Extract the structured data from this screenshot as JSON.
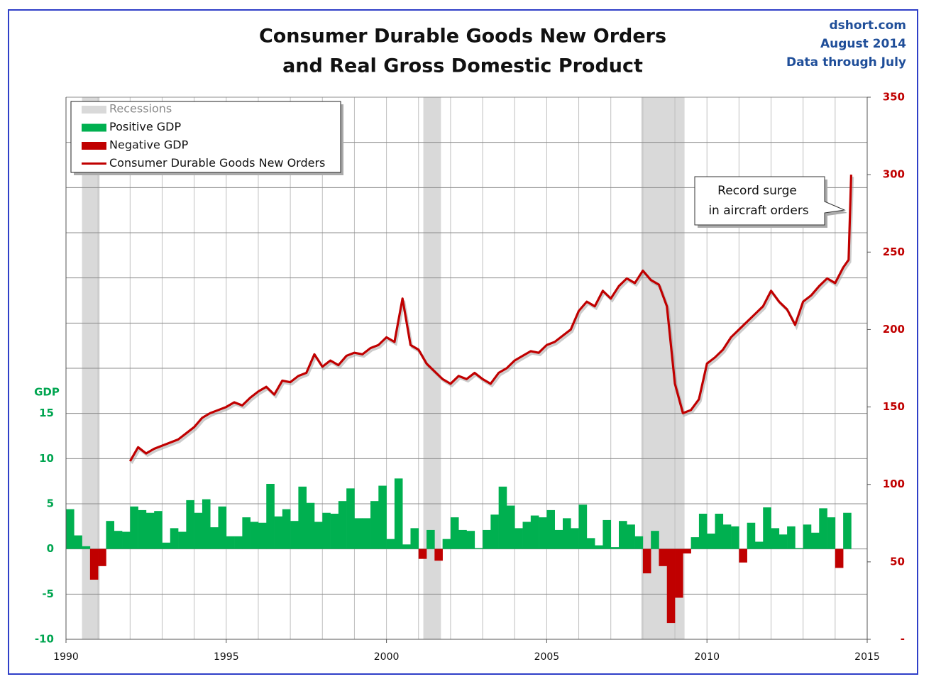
{
  "chart_data": {
    "type": "gdp-orders",
    "title": [
      "Consumer Durable Goods New Orders",
      "and Real Gross Domestic Product"
    ],
    "source": [
      "dshort.com",
      "August 2014",
      "Data through July"
    ],
    "y_label": "GDP",
    "annotation": [
      "Record surge",
      "in aircraft orders"
    ],
    "xlim": [
      1990,
      2015
    ],
    "xticks": [
      1990,
      1995,
      2000,
      2005,
      2010,
      2015
    ],
    "xgrid": [
      1990,
      1991,
      1992,
      1993,
      1994,
      1995,
      1996,
      1997,
      1998,
      1999,
      2000,
      2001,
      2002,
      2003,
      2004,
      2005,
      2006,
      2007,
      2008,
      2009,
      2010,
      2011,
      2012,
      2013,
      2014,
      2015
    ],
    "ylim": [
      -10,
      50
    ],
    "yticks": [
      -10,
      -5,
      0,
      5,
      10,
      15
    ],
    "ygrid": [
      -10,
      -5,
      0,
      5,
      10,
      15,
      20,
      25,
      30,
      35,
      40,
      45,
      50
    ],
    "y2lim": [
      0,
      350
    ],
    "y2ticks": [
      {
        "value": 0,
        "label": "-"
      },
      50,
      100,
      150,
      200,
      250,
      300,
      350
    ],
    "recessions": {
      "name": "Recessions",
      "color": "#d9d9d9",
      "spans": [
        [
          1990.5,
          1991.05
        ],
        [
          2001.15,
          2001.7
        ],
        [
          2007.95,
          2009.3
        ]
      ]
    },
    "gdp": {
      "positive": {
        "name": "Positive GDP",
        "color": "#00b050"
      },
      "negative": {
        "name": "Negative GDP",
        "color": "#c00000"
      },
      "x": [
        1990,
        1990.25,
        1990.5,
        1990.75,
        1991,
        1991.25,
        1991.5,
        1991.75,
        1992,
        1992.25,
        1992.5,
        1992.75,
        1993,
        1993.25,
        1993.5,
        1993.75,
        1994,
        1994.25,
        1994.5,
        1994.75,
        1995,
        1995.25,
        1995.5,
        1995.75,
        1996,
        1996.25,
        1996.5,
        1996.75,
        1997,
        1997.25,
        1997.5,
        1997.75,
        1998,
        1998.25,
        1998.5,
        1998.75,
        1999,
        1999.25,
        1999.5,
        1999.75,
        2000,
        2000.25,
        2000.5,
        2000.75,
        2001,
        2001.25,
        2001.5,
        2001.75,
        2002,
        2002.25,
        2002.5,
        2002.75,
        2003,
        2003.25,
        2003.5,
        2003.75,
        2004,
        2004.25,
        2004.5,
        2004.75,
        2005,
        2005.25,
        2005.5,
        2005.75,
        2006,
        2006.25,
        2006.5,
        2006.75,
        2007,
        2007.25,
        2007.5,
        2007.75,
        2008,
        2008.25,
        2008.5,
        2008.75,
        2009,
        2009.25,
        2009.5,
        2009.75,
        2010,
        2010.25,
        2010.5,
        2010.75,
        2011,
        2011.25,
        2011.5,
        2011.75,
        2012,
        2012.25,
        2012.5,
        2012.75,
        2013,
        2013.25,
        2013.5,
        2013.75,
        2014,
        2014.25
      ],
      "values": [
        4.4,
        1.5,
        0.3,
        -3.4,
        -1.9,
        3.1,
        2.0,
        1.9,
        4.7,
        4.3,
        4.0,
        4.2,
        0.7,
        2.3,
        1.9,
        5.4,
        4.0,
        5.5,
        2.4,
        4.7,
        1.4,
        1.4,
        3.5,
        3.0,
        2.9,
        7.2,
        3.6,
        4.4,
        3.1,
        6.9,
        5.1,
        3.0,
        4.0,
        3.9,
        5.3,
        6.7,
        3.4,
        3.4,
        5.3,
        7.0,
        1.1,
        7.8,
        0.5,
        2.3,
        -1.1,
        2.1,
        -1.3,
        1.1,
        3.5,
        2.1,
        2.0,
        0.1,
        2.1,
        3.8,
        6.9,
        4.8,
        2.3,
        3.0,
        3.7,
        3.5,
        4.3,
        2.1,
        3.4,
        2.3,
        4.9,
        1.2,
        0.4,
        3.2,
        0.2,
        3.1,
        2.7,
        1.4,
        -2.7,
        2.0,
        -1.9,
        -8.2,
        -5.4,
        -0.5,
        1.3,
        3.9,
        1.7,
        3.9,
        2.7,
        2.5,
        -1.5,
        2.9,
        0.8,
        4.6,
        2.3,
        1.6,
        2.5,
        0.1,
        2.7,
        1.8,
        4.5,
        3.5,
        -2.1,
        4.0
      ]
    },
    "series": [
      {
        "name": "Consumer Durable Goods New Orders",
        "color": "#c00000",
        "axis": "y2",
        "x": [
          1992,
          1992.25,
          1992.5,
          1992.75,
          1993,
          1993.25,
          1993.5,
          1993.75,
          1994,
          1994.25,
          1994.5,
          1994.75,
          1995,
          1995.25,
          1995.5,
          1995.75,
          1996,
          1996.25,
          1996.5,
          1996.75,
          1997,
          1997.25,
          1997.5,
          1997.75,
          1998,
          1998.25,
          1998.5,
          1998.75,
          1999,
          1999.25,
          1999.5,
          1999.75,
          2000,
          2000.25,
          2000.5,
          2000.75,
          2001,
          2001.25,
          2001.5,
          2001.75,
          2002,
          2002.25,
          2002.5,
          2002.75,
          2003,
          2003.25,
          2003.5,
          2003.75,
          2004,
          2004.25,
          2004.5,
          2004.75,
          2005,
          2005.25,
          2005.5,
          2005.75,
          2006,
          2006.25,
          2006.5,
          2006.75,
          2007,
          2007.25,
          2007.5,
          2007.75,
          2008,
          2008.25,
          2008.5,
          2008.75,
          2009,
          2009.25,
          2009.5,
          2009.75,
          2010,
          2010.25,
          2010.5,
          2010.75,
          2011,
          2011.25,
          2011.5,
          2011.75,
          2012,
          2012.25,
          2012.5,
          2012.75,
          2013,
          2013.25,
          2013.5,
          2013.75,
          2014,
          2014.25,
          2014.42,
          2014.5
        ],
        "values": [
          115,
          124,
          120,
          123,
          125,
          127,
          129,
          133,
          137,
          143,
          146,
          148,
          150,
          153,
          151,
          156,
          160,
          163,
          158,
          167,
          166,
          170,
          172,
          184,
          176,
          180,
          177,
          183,
          185,
          184,
          188,
          190,
          195,
          192,
          220,
          190,
          187,
          178,
          173,
          168,
          165,
          170,
          168,
          172,
          168,
          165,
          172,
          175,
          180,
          183,
          186,
          185,
          190,
          192,
          196,
          200,
          212,
          218,
          215,
          225,
          220,
          228,
          233,
          230,
          238,
          232,
          229,
          215,
          165,
          146,
          148,
          155,
          178,
          182,
          187,
          195,
          200,
          205,
          210,
          215,
          225,
          218,
          213,
          203,
          218,
          222,
          228,
          233,
          230,
          240,
          245,
          300
        ]
      }
    ]
  }
}
